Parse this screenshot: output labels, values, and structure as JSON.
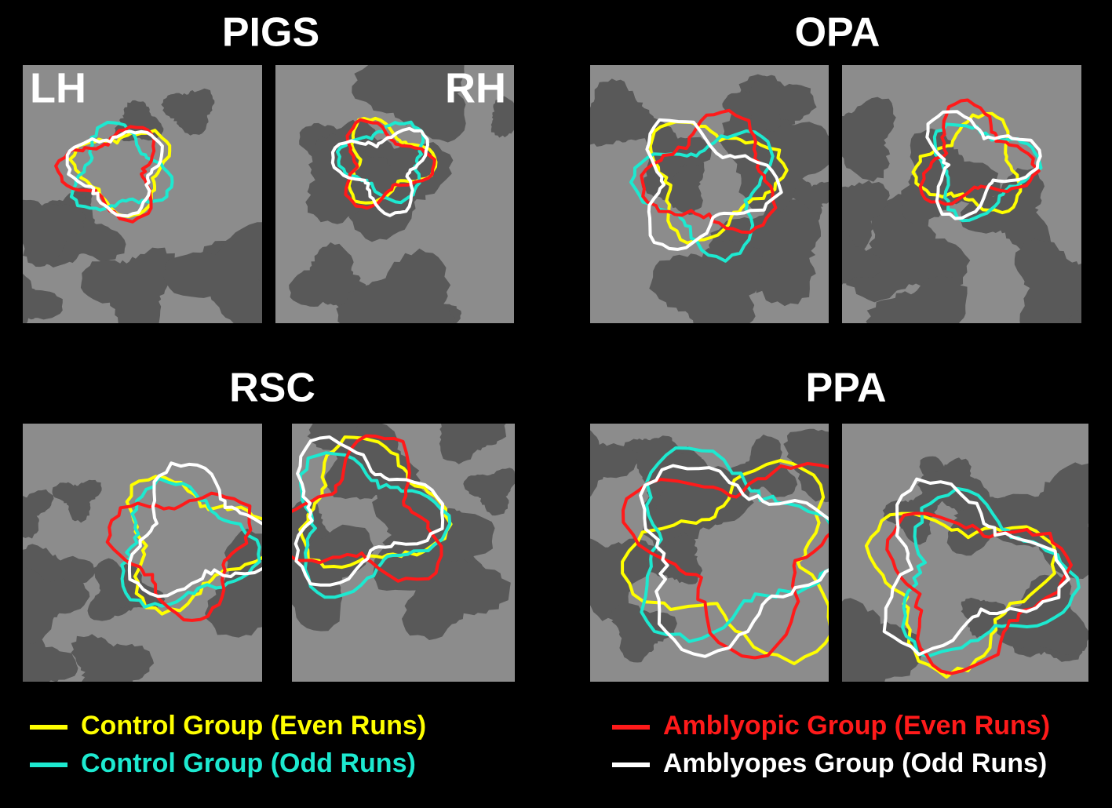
{
  "panels": [
    {
      "title": "PIGS",
      "left_label": "LH",
      "right_label": "RH"
    },
    {
      "title": "OPA"
    },
    {
      "title": "RSC"
    },
    {
      "title": "PPA"
    }
  ],
  "legend": [
    {
      "label": "Control Group (Even Runs)",
      "color": "#ffff00"
    },
    {
      "label": "Control Group (Odd Runs)",
      "color": "#1de9d0"
    },
    {
      "label": "Amblyopic Group (Even Runs)",
      "color": "#ff1a1a"
    },
    {
      "label": "Amblyopes Group (Odd Runs)",
      "color": "#ffffff"
    }
  ]
}
